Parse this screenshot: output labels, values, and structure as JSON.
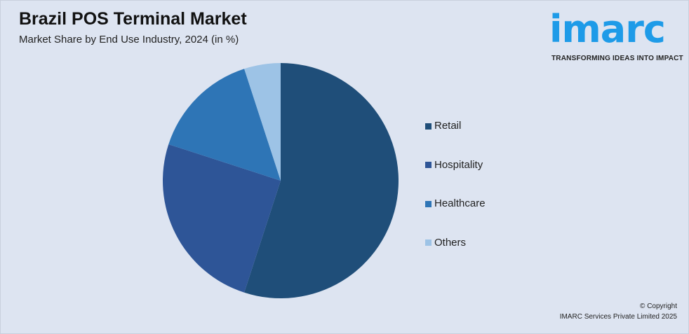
{
  "header": {
    "title": "Brazil POS Terminal Market",
    "subtitle": "Market Share by End Use Industry, 2024 (in %)"
  },
  "logo": {
    "word": "imarc",
    "tagline": "TRANSFORMING IDEAS INTO IMPACT",
    "color": "#1e9be8"
  },
  "chart_data": {
    "type": "pie",
    "title": "Brazil POS Terminal Market",
    "subtitle": "Market Share by End Use Industry, 2024 (in %)",
    "categories": [
      "Retail",
      "Hospitality",
      "Healthcare",
      "Others"
    ],
    "values": [
      55,
      25,
      15,
      5
    ],
    "colors": [
      "#1f4e79",
      "#2e5597",
      "#2e75b6",
      "#9dc3e6"
    ],
    "start": "12 o'clock, clockwise",
    "legend": "right"
  },
  "footer": {
    "copyright": "© Copyright",
    "company": "IMARC Services Private Limited 2025"
  }
}
